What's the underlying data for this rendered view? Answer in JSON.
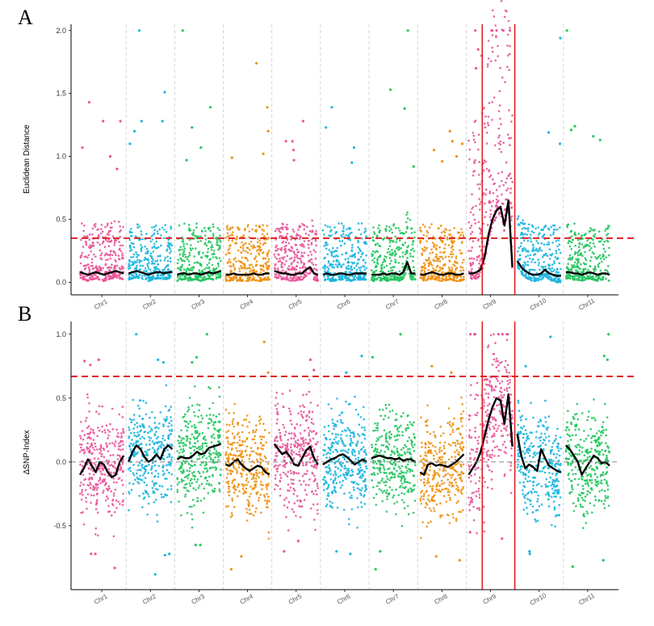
{
  "colors": {
    "chr_palette": [
      "#E8559A",
      "#1BB5DE",
      "#22C55E",
      "#F0900F"
    ],
    "threshold": "#E02020",
    "region": "#E02020",
    "smooth": "#000000",
    "zero_line": "#888888",
    "chr_divider": "#CCCCCC"
  },
  "chart_data": [
    {
      "type": "scatter",
      "panel_label": "A",
      "title": "",
      "xlabel": "",
      "ylabel": "Euclidean Distance",
      "ylim": [
        -0.1,
        2.05
      ],
      "yticks": [
        0.0,
        0.5,
        1.0,
        1.5,
        2.0
      ],
      "ytick_labels": [
        "0.0",
        "0.5",
        "1.0",
        "1.5",
        "2.0"
      ],
      "categories": [
        "Chr1",
        "Chr2",
        "Chr3",
        "Chr4",
        "Chr5",
        "Chr6",
        "Chr7",
        "Chr8",
        "Chr9",
        "Chr10",
        "Chr11"
      ],
      "threshold": 0.35,
      "zero_line": false,
      "grid": false,
      "candidate_region": {
        "chromosome": "Chr9",
        "start_fraction": 0.33,
        "end_fraction": 1.0
      },
      "series": [
        {
          "chromosome": "Chr1",
          "smooth": [
            0.08,
            0.07,
            0.06,
            0.07,
            0.08,
            0.07,
            0.06,
            0.07,
            0.08,
            0.09,
            0.08,
            0.07
          ],
          "typical_max": 0.45,
          "outliers": [
            1.43,
            1.28,
            1.28,
            1.07,
            1.0,
            0.9
          ]
        },
        {
          "chromosome": "Chr2",
          "smooth": [
            0.07,
            0.08,
            0.09,
            0.08,
            0.07,
            0.06,
            0.07,
            0.08,
            0.08,
            0.07,
            0.08,
            0.08
          ],
          "typical_max": 0.45,
          "outliers": [
            2.0,
            1.51,
            1.28,
            1.28,
            1.2,
            1.1
          ]
        },
        {
          "chromosome": "Chr3",
          "smooth": [
            0.06,
            0.07,
            0.07,
            0.06,
            0.07,
            0.07,
            0.06,
            0.07,
            0.08,
            0.07,
            0.08,
            0.09
          ],
          "typical_max": 0.45,
          "outliers": [
            2.0,
            1.39,
            1.23,
            1.07,
            0.97
          ]
        },
        {
          "chromosome": "Chr4",
          "smooth": [
            0.06,
            0.06,
            0.07,
            0.06,
            0.06,
            0.06,
            0.06,
            0.07,
            0.06,
            0.06,
            0.07,
            0.07
          ],
          "typical_max": 0.45,
          "outliers": [
            1.74,
            1.39,
            1.2,
            1.02,
            0.99
          ]
        },
        {
          "chromosome": "Chr5",
          "smooth": [
            0.09,
            0.08,
            0.07,
            0.07,
            0.06,
            0.06,
            0.07,
            0.07,
            0.1,
            0.12,
            0.07,
            0.06
          ],
          "typical_max": 0.45,
          "outliers": [
            1.28,
            1.12,
            1.12,
            1.05,
            0.97
          ]
        },
        {
          "chromosome": "Chr6",
          "smooth": [
            0.06,
            0.07,
            0.06,
            0.06,
            0.07,
            0.07,
            0.06,
            0.06,
            0.07,
            0.07,
            0.07,
            0.07
          ],
          "typical_max": 0.45,
          "outliers": [
            1.39,
            1.23,
            1.07,
            0.95
          ]
        },
        {
          "chromosome": "Chr7",
          "smooth": [
            0.06,
            0.06,
            0.06,
            0.07,
            0.06,
            0.07,
            0.07,
            0.06,
            0.08,
            0.16,
            0.07,
            0.07
          ],
          "typical_max": 0.45,
          "outliers": [
            2.0,
            1.53,
            1.38,
            0.92
          ]
        },
        {
          "chromosome": "Chr8",
          "smooth": [
            0.06,
            0.06,
            0.07,
            0.08,
            0.07,
            0.06,
            0.06,
            0.07,
            0.07,
            0.06,
            0.06,
            0.07
          ],
          "typical_max": 0.45,
          "outliers": [
            1.2,
            1.12,
            1.1,
            1.05,
            1.0,
            0.96
          ]
        },
        {
          "chromosome": "Chr9",
          "smooth": [
            0.07,
            0.07,
            0.08,
            0.1,
            0.2,
            0.38,
            0.5,
            0.57,
            0.6,
            0.45,
            0.65,
            0.12
          ],
          "typical_max": 1.3,
          "outliers": [
            2.0,
            2.0,
            2.0,
            2.0,
            2.0,
            2.0,
            1.85,
            1.8,
            1.7
          ]
        },
        {
          "chromosome": "Chr10",
          "smooth": [
            0.17,
            0.12,
            0.09,
            0.07,
            0.06,
            0.06,
            0.07,
            0.1,
            0.07,
            0.06,
            0.05,
            0.05
          ],
          "typical_max": 0.45,
          "outliers": [
            1.94,
            1.19,
            1.1
          ]
        },
        {
          "chromosome": "Chr11",
          "smooth": [
            0.08,
            0.08,
            0.07,
            0.07,
            0.06,
            0.07,
            0.08,
            0.07,
            0.06,
            0.07,
            0.07,
            0.06
          ],
          "typical_max": 0.45,
          "outliers": [
            2.0,
            1.24,
            1.21,
            1.16,
            1.13
          ]
        }
      ]
    },
    {
      "type": "scatter",
      "panel_label": "B",
      "title": "",
      "xlabel": "",
      "ylabel": "ΔSNP-Index",
      "ylim": [
        -1.0,
        1.1
      ],
      "yticks": [
        -0.5,
        0.0,
        0.5,
        1.0
      ],
      "ytick_labels": [
        "-0.5",
        "0.0",
        "0.5",
        "1.0"
      ],
      "categories": [
        "Chr1",
        "Chr2",
        "Chr3",
        "Chr4",
        "Chr5",
        "Chr6",
        "Chr7",
        "Chr8",
        "Chr9",
        "Chr10",
        "Chr11"
      ],
      "threshold": 0.67,
      "zero_line": true,
      "grid": false,
      "candidate_region": {
        "chromosome": "Chr9",
        "start_fraction": 0.33,
        "end_fraction": 1.0
      },
      "series": [
        {
          "chromosome": "Chr1",
          "smooth": [
            -0.1,
            -0.05,
            0.02,
            -0.03,
            -0.08,
            0.0,
            -0.02,
            -0.08,
            -0.12,
            -0.1,
            0.0,
            0.05
          ],
          "typical_min": -0.5,
          "typical_max": 0.5,
          "outliers": [
            0.8,
            0.79,
            0.76,
            -0.72,
            -0.83,
            -0.72
          ]
        },
        {
          "chromosome": "Chr2",
          "smooth": [
            0.0,
            0.08,
            0.13,
            0.1,
            0.04,
            0.0,
            0.02,
            0.06,
            0.02,
            0.1,
            0.13,
            0.1
          ],
          "typical_min": -0.45,
          "typical_max": 0.55,
          "outliers": [
            1.0,
            0.8,
            0.78,
            -0.73,
            -0.88,
            -0.72
          ]
        },
        {
          "chromosome": "Chr3",
          "smooth": [
            0.02,
            0.04,
            0.03,
            0.03,
            0.05,
            0.08,
            0.06,
            0.07,
            0.11,
            0.12,
            0.13,
            0.14
          ],
          "typical_min": -0.45,
          "typical_max": 0.55,
          "outliers": [
            1.0,
            0.82,
            0.78,
            -0.65,
            -0.65
          ]
        },
        {
          "chromosome": "Chr4",
          "smooth": [
            -0.02,
            -0.03,
            0.0,
            0.02,
            -0.02,
            -0.05,
            -0.07,
            -0.05,
            -0.03,
            -0.04,
            -0.08,
            -0.1
          ],
          "typical_min": -0.5,
          "typical_max": 0.5,
          "outliers": [
            0.94,
            0.7,
            -0.74,
            -0.84
          ]
        },
        {
          "chromosome": "Chr5",
          "smooth": [
            0.14,
            0.1,
            0.06,
            0.08,
            0.04,
            -0.02,
            -0.03,
            0.03,
            0.09,
            0.12,
            0.03,
            -0.02
          ],
          "typical_min": -0.5,
          "typical_max": 0.55,
          "outliers": [
            0.8,
            0.72,
            -0.7,
            -0.62
          ]
        },
        {
          "chromosome": "Chr6",
          "smooth": [
            -0.02,
            0.0,
            0.02,
            0.03,
            0.05,
            0.06,
            0.04,
            0.01,
            -0.02,
            0.0,
            0.02,
            0.0
          ],
          "typical_min": -0.45,
          "typical_max": 0.55,
          "outliers": [
            0.83,
            0.7,
            -0.72,
            -0.7
          ]
        },
        {
          "chromosome": "Chr7",
          "smooth": [
            0.03,
            0.04,
            0.05,
            0.04,
            0.03,
            0.03,
            0.02,
            0.03,
            0.01,
            0.02,
            0.02,
            0.0
          ],
          "typical_min": -0.45,
          "typical_max": 0.5,
          "outliers": [
            1.0,
            0.82,
            -0.7,
            -0.84
          ]
        },
        {
          "chromosome": "Chr8",
          "smooth": [
            -0.08,
            -0.1,
            -0.02,
            -0.01,
            -0.03,
            -0.02,
            -0.03,
            -0.04,
            -0.02,
            0.0,
            0.03,
            0.06
          ],
          "typical_min": -0.5,
          "typical_max": 0.5,
          "outliers": [
            0.75,
            0.7,
            -0.74,
            -0.77
          ]
        },
        {
          "chromosome": "Chr9",
          "smooth": [
            -0.1,
            -0.05,
            0.0,
            0.08,
            0.2,
            0.33,
            0.43,
            0.5,
            0.48,
            0.3,
            0.53,
            0.12
          ],
          "typical_min": -0.5,
          "typical_max": 0.9,
          "outliers": [
            1.0,
            1.0,
            1.0,
            1.0,
            1.0,
            1.0,
            -0.6,
            -0.55
          ]
        },
        {
          "chromosome": "Chr10",
          "smooth": [
            0.22,
            0.05,
            -0.05,
            -0.02,
            -0.04,
            -0.07,
            0.1,
            0.03,
            -0.03,
            -0.05,
            -0.07,
            -0.08
          ],
          "typical_min": -0.45,
          "typical_max": 0.45,
          "outliers": [
            0.98,
            0.75,
            -0.7,
            -0.72
          ]
        },
        {
          "chromosome": "Chr11",
          "smooth": [
            0.13,
            0.1,
            0.05,
            0.0,
            -0.1,
            -0.05,
            0.0,
            0.05,
            0.03,
            -0.01,
            0.0,
            -0.03
          ],
          "typical_min": -0.45,
          "typical_max": 0.5,
          "outliers": [
            1.0,
            0.83,
            0.8,
            -0.77,
            -0.82
          ]
        }
      ]
    }
  ]
}
